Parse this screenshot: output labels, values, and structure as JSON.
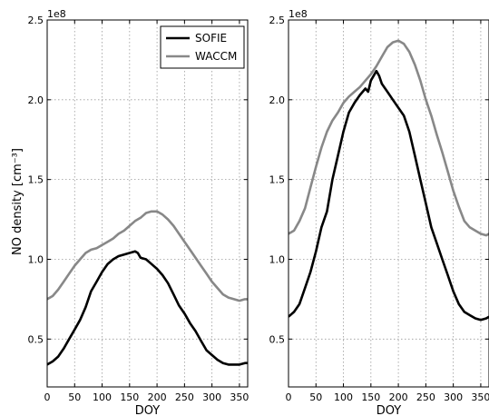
{
  "chart_data": [
    {
      "type": "line",
      "xlabel": "DOY",
      "ylabel": "NO density [cm$^{-3}$]",
      "ylabel_display": "NO density [cm⁻³]",
      "y_offset_label": "1e8",
      "xlim": [
        0,
        365
      ],
      "ylim": [
        0.2,
        2.5
      ],
      "xticks": [
        "0",
        "50",
        "100",
        "150",
        "200",
        "250",
        "300",
        "350"
      ],
      "yticks": [
        "0.5",
        "1.0",
        "1.5",
        "2.0",
        "2.5"
      ],
      "grid": true,
      "legend": "top-right",
      "series": [
        {
          "name": "SOFIE",
          "color": "#000000",
          "x": [
            0,
            10,
            20,
            30,
            40,
            50,
            60,
            70,
            80,
            90,
            100,
            110,
            120,
            130,
            140,
            150,
            160,
            165,
            170,
            180,
            190,
            200,
            210,
            220,
            230,
            240,
            250,
            260,
            270,
            280,
            290,
            300,
            310,
            320,
            330,
            340,
            350,
            360,
            365
          ],
          "y": [
            0.34,
            0.36,
            0.39,
            0.44,
            0.5,
            0.56,
            0.62,
            0.7,
            0.8,
            0.86,
            0.92,
            0.97,
            1.0,
            1.02,
            1.03,
            1.04,
            1.05,
            1.04,
            1.01,
            1.0,
            0.97,
            0.94,
            0.9,
            0.85,
            0.78,
            0.71,
            0.66,
            0.6,
            0.55,
            0.49,
            0.43,
            0.4,
            0.37,
            0.35,
            0.34,
            0.34,
            0.34,
            0.35,
            0.35
          ]
        },
        {
          "name": "WACCM",
          "color": "#888888",
          "x": [
            0,
            10,
            20,
            30,
            40,
            50,
            60,
            70,
            80,
            90,
            100,
            110,
            120,
            130,
            140,
            150,
            160,
            170,
            180,
            190,
            200,
            210,
            220,
            230,
            240,
            250,
            260,
            270,
            280,
            290,
            300,
            310,
            320,
            330,
            340,
            350,
            360,
            365
          ],
          "y": [
            0.75,
            0.77,
            0.81,
            0.86,
            0.91,
            0.96,
            1.0,
            1.04,
            1.06,
            1.07,
            1.09,
            1.11,
            1.13,
            1.16,
            1.18,
            1.21,
            1.24,
            1.26,
            1.29,
            1.3,
            1.3,
            1.28,
            1.25,
            1.21,
            1.16,
            1.11,
            1.06,
            1.01,
            0.96,
            0.91,
            0.86,
            0.82,
            0.78,
            0.76,
            0.75,
            0.74,
            0.75,
            0.75
          ]
        }
      ]
    },
    {
      "type": "line",
      "xlabel": "DOY",
      "ylabel": "",
      "y_offset_label": "1e8",
      "xlim": [
        0,
        365
      ],
      "ylim": [
        0.2,
        2.5
      ],
      "xticks": [
        "0",
        "50",
        "100",
        "150",
        "200",
        "250",
        "300",
        "350"
      ],
      "yticks": [
        "0.5",
        "1.0",
        "1.5",
        "2.0",
        "2.5"
      ],
      "grid": true,
      "series": [
        {
          "name": "SOFIE",
          "color": "#000000",
          "x": [
            0,
            10,
            20,
            30,
            40,
            50,
            60,
            70,
            80,
            90,
            100,
            110,
            120,
            130,
            140,
            145,
            150,
            160,
            165,
            170,
            180,
            190,
            200,
            210,
            220,
            230,
            240,
            250,
            260,
            270,
            280,
            290,
            300,
            310,
            320,
            330,
            340,
            350,
            360,
            365
          ],
          "y": [
            0.64,
            0.67,
            0.72,
            0.82,
            0.92,
            1.05,
            1.2,
            1.3,
            1.5,
            1.65,
            1.8,
            1.92,
            1.98,
            2.03,
            2.07,
            2.05,
            2.12,
            2.18,
            2.15,
            2.1,
            2.05,
            2.0,
            1.95,
            1.9,
            1.8,
            1.65,
            1.5,
            1.35,
            1.2,
            1.1,
            1.0,
            0.9,
            0.8,
            0.72,
            0.67,
            0.65,
            0.63,
            0.62,
            0.63,
            0.64
          ]
        },
        {
          "name": "WACCM",
          "color": "#888888",
          "x": [
            0,
            10,
            20,
            30,
            40,
            50,
            60,
            70,
            80,
            90,
            100,
            110,
            120,
            130,
            140,
            150,
            160,
            170,
            180,
            190,
            200,
            210,
            220,
            230,
            240,
            250,
            260,
            270,
            280,
            290,
            300,
            310,
            320,
            330,
            340,
            350,
            360,
            365
          ],
          "y": [
            1.16,
            1.18,
            1.24,
            1.32,
            1.45,
            1.58,
            1.7,
            1.8,
            1.87,
            1.92,
            1.98,
            2.02,
            2.05,
            2.08,
            2.12,
            2.16,
            2.21,
            2.27,
            2.33,
            2.36,
            2.37,
            2.35,
            2.3,
            2.22,
            2.12,
            2.0,
            1.9,
            1.78,
            1.67,
            1.55,
            1.43,
            1.33,
            1.24,
            1.2,
            1.18,
            1.16,
            1.15,
            1.16
          ]
        }
      ]
    }
  ]
}
